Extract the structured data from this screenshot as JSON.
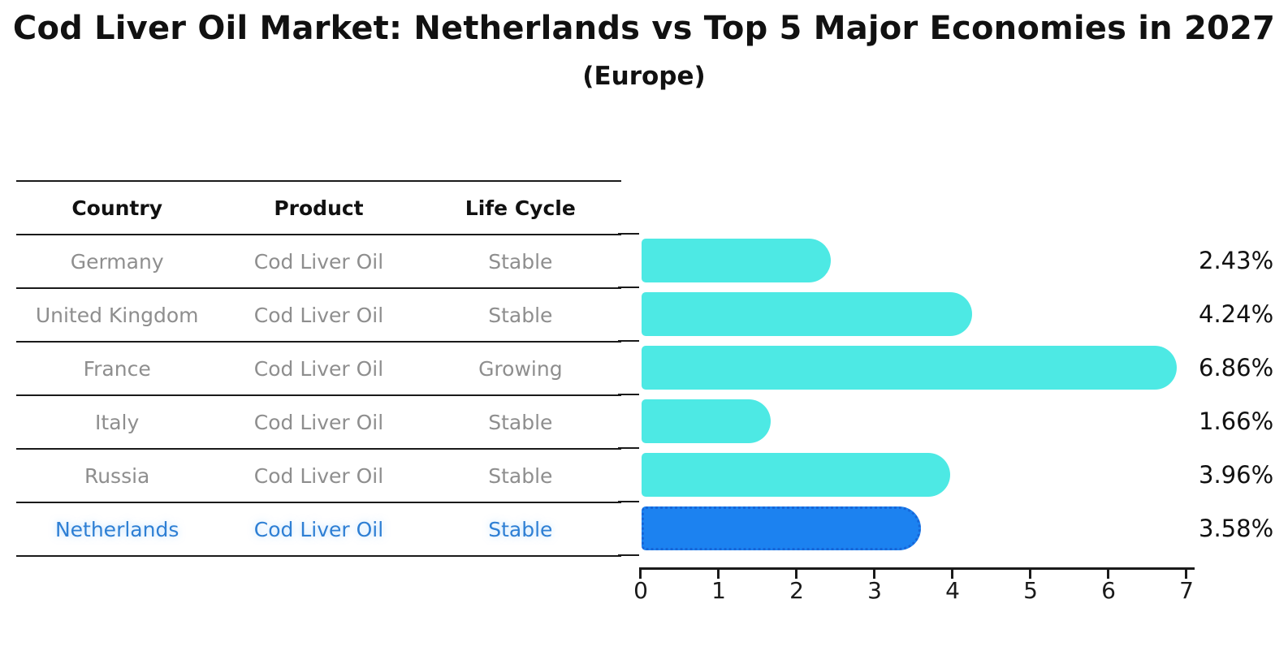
{
  "header": {
    "title": "Cod Liver Oil Market: Netherlands vs Top 5 Major Economies in 2027",
    "subtitle": "(Europe)"
  },
  "accent_colors": {
    "bar": "#4DE9E4",
    "highlight_bar": "#1C82F0",
    "highlight_bar_border": "#1766D8",
    "highlight_text": "#2E7FD4",
    "table_text": "#8E8E8E"
  },
  "table": {
    "columns": [
      "Country",
      "Product",
      "Life Cycle"
    ],
    "rows": [
      {
        "country": "Germany",
        "product": "Cod Liver Oil",
        "life_cycle": "Stable",
        "highlight": false
      },
      {
        "country": "United Kingdom",
        "product": "Cod Liver Oil",
        "life_cycle": "Stable",
        "highlight": false
      },
      {
        "country": "France",
        "product": "Cod Liver Oil",
        "life_cycle": "Growing",
        "highlight": false
      },
      {
        "country": "Italy",
        "product": "Cod Liver Oil",
        "life_cycle": "Stable",
        "highlight": false
      },
      {
        "country": "Russia",
        "product": "Cod Liver Oil",
        "life_cycle": "Stable",
        "highlight": false
      },
      {
        "country": "Netherlands",
        "product": "Cod Liver Oil",
        "life_cycle": "Stable",
        "highlight": true
      }
    ]
  },
  "chart_data": {
    "type": "bar",
    "orientation": "horizontal",
    "title": "Cod Liver Oil Market: Netherlands vs Top 5 Major Economies in 2027 (Europe)",
    "categories": [
      "Germany",
      "United Kingdom",
      "France",
      "Italy",
      "Russia",
      "Netherlands"
    ],
    "values": [
      2.43,
      4.24,
      6.86,
      1.66,
      3.96,
      3.58
    ],
    "value_labels": [
      "2.43%",
      "4.24%",
      "6.86%",
      "1.66%",
      "3.96%",
      "3.58%"
    ],
    "highlight_index": 5,
    "x_ticks": [
      0,
      1,
      2,
      3,
      4,
      5,
      6,
      7
    ],
    "xlim": [
      0,
      7.1
    ],
    "xlabel": "",
    "ylabel": "",
    "grid": false,
    "legend": false
  }
}
